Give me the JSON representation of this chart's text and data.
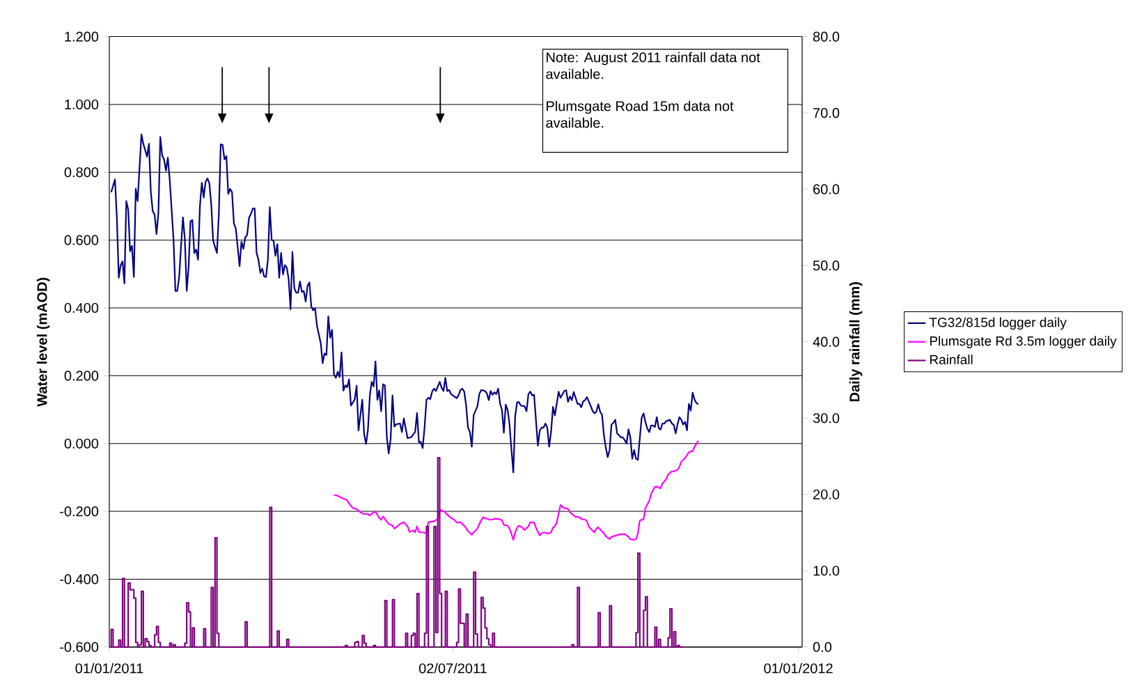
{
  "chart_data": {
    "type": "line",
    "ylabel": "Water level (mAOD)",
    "y2label": "Daily rainfall (mm)",
    "annotations": [
      "Note: August 2011 rainfall data not available.",
      "Plumsgate Road 15m data not available."
    ],
    "xlim": [
      "2011-01-01",
      "2012-01-03"
    ],
    "xticks": [
      {
        "value": "2011-01-01",
        "label": "01/01/2011"
      },
      {
        "value": "2011-07-02",
        "label": "02/07/2011"
      },
      {
        "value": "2012-01-01",
        "label": "01/01/2012"
      }
    ],
    "ylim": [
      -0.6,
      1.2
    ],
    "yticks": [
      {
        "value": -0.6,
        "label": "-0.600"
      },
      {
        "value": -0.4,
        "label": "-0.400"
      },
      {
        "value": -0.2,
        "label": "-0.200"
      },
      {
        "value": 0,
        "label": "0.000"
      },
      {
        "value": 0.2,
        "label": "0.200"
      },
      {
        "value": 0.4,
        "label": "0.400"
      },
      {
        "value": 0.6,
        "label": "0.600"
      },
      {
        "value": 0.8,
        "label": "0.800"
      },
      {
        "value": 1.0,
        "label": "1.000"
      },
      {
        "value": 1.2,
        "label": "1.200"
      }
    ],
    "y2lim": [
      0,
      80
    ],
    "y2ticks": [
      {
        "value": 0,
        "label": "0.0"
      },
      {
        "value": 10,
        "label": "10.0"
      },
      {
        "value": 20,
        "label": "20.0"
      },
      {
        "value": 30,
        "label": "30.0"
      },
      {
        "value": 40,
        "label": "40.0"
      },
      {
        "value": 50,
        "label": "50.0"
      },
      {
        "value": 60,
        "label": "60.0"
      },
      {
        "value": 70,
        "label": "70.0"
      },
      {
        "value": 80,
        "label": "80.0"
      }
    ],
    "grid": "y",
    "legend": "right",
    "series": [
      {
        "name": "TG32/815d logger daily",
        "color": "#000080",
        "x": [
          "2011-01-02",
          "2011-01-04",
          "2011-01-05",
          "2011-01-06",
          "2011-01-07",
          "2011-01-08",
          "2011-01-09",
          "2011-01-10",
          "2011-01-11",
          "2011-01-12",
          "2011-01-13",
          "2011-01-14",
          "2011-01-15",
          "2011-01-16",
          "2011-01-18",
          "2011-01-19",
          "2011-01-21",
          "2011-01-22",
          "2011-01-23",
          "2011-01-24",
          "2011-01-25",
          "2011-01-26",
          "2011-01-27",
          "2011-01-28",
          "2011-01-29",
          "2011-01-30",
          "2011-01-31",
          "2011-02-01",
          "2011-02-02",
          "2011-02-04",
          "2011-02-05",
          "2011-02-06",
          "2011-02-07",
          "2011-02-08",
          "2011-02-09",
          "2011-02-10",
          "2011-02-11",
          "2011-02-12",
          "2011-02-13",
          "2011-02-14",
          "2011-02-15",
          "2011-02-16",
          "2011-02-17",
          "2011-02-18",
          "2011-02-19",
          "2011-02-20",
          "2011-02-21",
          "2011-02-22",
          "2011-02-23",
          "2011-02-24",
          "2011-02-25",
          "2011-02-27",
          "2011-02-28",
          "2011-03-01",
          "2011-03-02",
          "2011-03-03",
          "2011-03-04",
          "2011-03-05",
          "2011-03-06",
          "2011-03-07",
          "2011-03-08",
          "2011-03-09",
          "2011-03-11",
          "2011-03-12",
          "2011-03-13",
          "2011-03-14",
          "2011-03-15",
          "2011-03-16",
          "2011-03-17",
          "2011-03-18",
          "2011-03-19",
          "2011-03-20",
          "2011-03-21",
          "2011-03-22",
          "2011-03-23",
          "2011-03-24",
          "2011-03-25",
          "2011-03-26",
          "2011-03-27",
          "2011-03-28",
          "2011-03-29",
          "2011-03-30",
          "2011-03-31",
          "2011-04-01",
          "2011-04-02",
          "2011-04-03",
          "2011-04-04",
          "2011-04-05",
          "2011-04-06",
          "2011-04-07",
          "2011-04-08",
          "2011-04-09",
          "2011-04-10",
          "2011-04-11",
          "2011-04-12",
          "2011-04-13",
          "2011-04-14",
          "2011-04-15",
          "2011-04-16",
          "2011-04-17",
          "2011-04-18",
          "2011-04-19",
          "2011-04-20",
          "2011-04-21",
          "2011-04-23",
          "2011-04-24",
          "2011-04-25",
          "2011-04-26",
          "2011-04-27",
          "2011-04-28",
          "2011-04-29",
          "2011-04-30",
          "2011-05-01",
          "2011-05-02",
          "2011-05-03",
          "2011-05-04",
          "2011-05-05",
          "2011-05-06",
          "2011-05-07",
          "2011-05-08",
          "2011-05-09",
          "2011-05-11",
          "2011-05-12",
          "2011-05-13",
          "2011-05-15",
          "2011-05-16",
          "2011-05-17",
          "2011-05-18",
          "2011-05-19",
          "2011-05-20",
          "2011-05-21",
          "2011-05-22",
          "2011-05-23",
          "2011-05-24",
          "2011-05-25",
          "2011-05-26",
          "2011-05-27",
          "2011-05-28",
          "2011-05-29",
          "2011-05-30",
          "2011-05-31",
          "2011-06-01",
          "2011-06-02",
          "2011-06-04",
          "2011-06-05",
          "2011-06-06",
          "2011-06-08",
          "2011-06-10",
          "2011-06-11",
          "2011-06-12",
          "2011-06-13",
          "2011-06-14",
          "2011-06-15",
          "2011-06-16",
          "2011-06-17",
          "2011-06-18",
          "2011-06-19",
          "2011-06-20",
          "2011-06-21",
          "2011-06-22",
          "2011-06-23",
          "2011-06-24",
          "2011-06-25",
          "2011-06-26",
          "2011-06-27",
          "2011-06-28",
          "2011-06-29",
          "2011-06-30",
          "2011-07-01",
          "2011-07-02",
          "2011-07-04",
          "2011-07-05",
          "2011-07-06",
          "2011-07-07",
          "2011-07-08",
          "2011-07-09",
          "2011-07-10",
          "2011-07-11",
          "2011-07-12",
          "2011-07-13",
          "2011-07-15",
          "2011-07-16",
          "2011-07-17",
          "2011-07-19",
          "2011-07-20",
          "2011-07-21",
          "2011-07-22",
          "2011-07-23",
          "2011-07-24",
          "2011-07-25",
          "2011-07-26",
          "2011-07-27",
          "2011-07-28",
          "2011-07-29",
          "2011-07-30",
          "2011-07-31",
          "2011-08-01",
          "2011-08-02",
          "2011-08-03",
          "2011-08-04",
          "2011-08-05",
          "2011-08-06",
          "2011-08-07",
          "2011-08-09",
          "2011-08-10",
          "2011-08-11",
          "2011-08-12",
          "2011-08-13",
          "2011-08-14",
          "2011-08-16",
          "2011-08-17",
          "2011-08-18",
          "2011-08-19",
          "2011-08-20",
          "2011-08-21",
          "2011-08-22",
          "2011-08-23",
          "2011-08-24",
          "2011-08-25",
          "2011-08-26",
          "2011-08-27",
          "2011-08-28",
          "2011-08-30",
          "2011-08-31",
          "2011-09-01",
          "2011-09-02",
          "2011-09-03",
          "2011-09-04",
          "2011-09-05",
          "2011-09-06",
          "2011-09-07",
          "2011-09-08",
          "2011-09-09",
          "2011-09-10",
          "2011-09-11",
          "2011-09-12",
          "2011-09-13",
          "2011-09-14",
          "2011-09-15",
          "2011-09-16",
          "2011-09-17",
          "2011-09-18",
          "2011-09-19",
          "2011-09-20",
          "2011-09-21",
          "2011-09-22",
          "2011-09-23",
          "2011-09-24",
          "2011-09-25",
          "2011-09-26",
          "2011-09-27",
          "2011-09-28",
          "2011-09-29",
          "2011-09-30",
          "2011-10-01",
          "2011-10-02",
          "2011-10-03",
          "2011-10-04",
          "2011-10-05",
          "2011-10-06",
          "2011-10-07",
          "2011-10-08",
          "2011-10-09",
          "2011-10-10",
          "2011-10-11",
          "2011-10-12",
          "2011-10-13",
          "2011-10-14",
          "2011-10-15",
          "2011-10-16",
          "2011-10-17",
          "2011-10-18",
          "2011-10-19",
          "2011-10-20",
          "2011-10-21",
          "2011-10-22",
          "2011-10-23",
          "2011-10-25",
          "2011-10-26",
          "2011-10-27",
          "2011-10-28",
          "2011-10-29",
          "2011-10-30",
          "2011-10-31",
          "2011-11-01",
          "2011-11-02",
          "2011-11-03",
          "2011-11-04",
          "2011-11-05",
          "2011-11-06",
          "2011-11-07",
          "2011-11-08",
          "2011-11-09"
        ],
        "values": [
          0.741,
          0.779,
          0.664,
          0.489,
          0.526,
          0.537,
          0.472,
          0.715,
          0.69,
          0.567,
          0.583,
          0.491,
          0.751,
          0.715,
          0.912,
          0.884,
          0.846,
          0.884,
          0.741,
          0.685,
          0.675,
          0.618,
          0.68,
          0.904,
          0.85,
          0.838,
          0.805,
          0.843,
          0.777,
          0.603,
          0.45,
          0.45,
          0.491,
          0.583,
          0.667,
          0.603,
          0.45,
          0.521,
          0.656,
          0.659,
          0.562,
          0.572,
          0.542,
          0.7,
          0.769,
          0.726,
          0.772,
          0.782,
          0.767,
          0.705,
          0.598,
          0.562,
          0.675,
          0.882,
          0.881,
          0.838,
          0.848,
          0.736,
          0.751,
          0.741,
          0.649,
          0.634,
          0.523,
          0.595,
          0.574,
          0.608,
          0.615,
          0.666,
          0.677,
          0.693,
          0.693,
          0.562,
          0.542,
          0.503,
          0.516,
          0.493,
          0.491,
          0.542,
          0.697,
          0.601,
          0.598,
          0.554,
          0.588,
          0.489,
          0.562,
          0.499,
          0.526,
          0.519,
          0.485,
          0.396,
          0.565,
          0.458,
          0.445,
          0.445,
          0.478,
          0.447,
          0.45,
          0.419,
          0.465,
          0.475,
          0.404,
          0.393,
          0.399,
          0.347,
          0.296,
          0.237,
          0.266,
          0.261,
          0.375,
          0.312,
          0.335,
          0.204,
          0.194,
          0.212,
          0.196,
          0.269,
          0.156,
          0.172,
          0.166,
          0.189,
          0.112,
          0.13,
          0.171,
          0.038,
          0.129,
          0.027,
          -0.001,
          0.041,
          0.142,
          0.182,
          0.168,
          0.242,
          0.129,
          0.157,
          0.095,
          0.175,
          0.171,
          0.019,
          -0.029,
          0.012,
          0.142,
          0.05,
          0.057,
          0.059,
          0.034,
          0.074,
          0.016,
          0.019,
          0.027,
          0.034,
          0.09,
          0.004,
          0.005,
          -0.013,
          0.048,
          0.129,
          0.135,
          0.131,
          0.153,
          0.162,
          0.155,
          0.168,
          0.182,
          0.165,
          0.155,
          0.194,
          0.155,
          0.158,
          0.146,
          0.142,
          0.134,
          0.142,
          0.158,
          0.162,
          0.153,
          0.113,
          0.047,
          0.034,
          -0.009,
          0.084,
          0.11,
          0.146,
          0.158,
          0.155,
          0.148,
          0.128,
          0.155,
          0.144,
          0.151,
          0.146,
          0.162,
          0.117,
          0.099,
          0.032,
          0.115,
          0.099,
          0.056,
          -0.017,
          -0.085,
          0.081,
          0.122,
          0.122,
          0.112,
          0.11,
          0.095,
          0.146,
          0.153,
          0.142,
          0.144,
          -0.006,
          0.038,
          0.047,
          0.047,
          0.059,
          0.047,
          -0.009,
          0.034,
          0.108,
          0.083,
          0.117,
          0.153,
          0.135,
          0.155,
          0.157,
          0.123,
          0.139,
          0.128,
          0.152,
          0.135,
          0.117,
          0.117,
          0.107,
          0.124,
          0.128,
          0.137,
          0.124,
          0.111,
          0.096,
          0.089,
          0.094,
          0.116,
          0.094,
          0.085,
          0.025,
          -0.012,
          -0.04,
          -0.019,
          0.056,
          0.061,
          0.07,
          0.03,
          0.025,
          0.018,
          0.018,
          0.01,
          0.0,
          0.042,
          0.018,
          -0.045,
          -0.019,
          -0.045,
          -0.048,
          0.015,
          0.076,
          0.089,
          0.063,
          0.044,
          0.034,
          0.053,
          0.053,
          0.049,
          0.078,
          0.046,
          0.041,
          0.059,
          0.059,
          0.066,
          0.07,
          0.059,
          0.055,
          0.03,
          0.057,
          0.078,
          0.07,
          0.056,
          0.064,
          0.039,
          0.117,
          0.097,
          0.15,
          0.13,
          0.119,
          0.116
        ]
      },
      {
        "name": "Plumsgate Rd 3.5m logger daily",
        "color": "#ff00ff",
        "x": [
          "2011-04-30",
          "2011-05-02",
          "2011-05-04",
          "2011-05-07",
          "2011-05-08",
          "2011-05-10",
          "2011-05-12",
          "2011-05-14",
          "2011-05-16",
          "2011-05-18",
          "2011-05-19",
          "2011-05-21",
          "2011-05-22",
          "2011-05-24",
          "2011-05-25",
          "2011-05-26",
          "2011-05-28",
          "2011-05-29",
          "2011-05-31",
          "2011-06-01",
          "2011-06-03",
          "2011-06-04",
          "2011-06-06",
          "2011-06-08",
          "2011-06-09",
          "2011-06-11",
          "2011-06-12",
          "2011-06-13",
          "2011-06-14",
          "2011-06-16",
          "2011-06-18",
          "2011-06-19",
          "2011-06-21",
          "2011-06-22",
          "2011-06-24",
          "2011-06-25",
          "2011-06-26",
          "2011-06-28",
          "2011-06-29",
          "2011-07-01",
          "2011-07-03",
          "2011-07-04",
          "2011-07-06",
          "2011-07-07",
          "2011-07-09",
          "2011-07-10",
          "2011-07-12",
          "2011-07-13",
          "2011-07-15",
          "2011-07-16",
          "2011-07-18",
          "2011-07-19",
          "2011-07-22",
          "2011-07-24",
          "2011-07-26",
          "2011-07-28",
          "2011-07-29",
          "2011-07-31",
          "2011-08-01",
          "2011-08-02",
          "2011-08-03",
          "2011-08-04",
          "2011-08-05",
          "2011-08-06",
          "2011-08-08",
          "2011-08-09",
          "2011-08-11",
          "2011-08-12",
          "2011-08-14",
          "2011-08-15",
          "2011-08-17",
          "2011-08-18",
          "2011-08-20",
          "2011-08-21",
          "2011-08-23",
          "2011-08-24",
          "2011-08-25",
          "2011-08-26",
          "2011-08-28",
          "2011-08-30",
          "2011-08-31",
          "2011-09-01",
          "2011-09-02",
          "2011-09-04",
          "2011-09-05",
          "2011-09-07",
          "2011-09-08",
          "2011-09-10",
          "2011-09-11",
          "2011-09-12",
          "2011-09-14",
          "2011-09-15",
          "2011-09-16",
          "2011-09-17",
          "2011-09-18",
          "2011-09-20",
          "2011-09-21",
          "2011-09-23",
          "2011-09-24",
          "2011-09-26",
          "2011-09-28",
          "2011-09-29",
          "2011-10-01",
          "2011-10-03",
          "2011-10-04",
          "2011-10-06",
          "2011-10-07",
          "2011-10-08",
          "2011-10-09",
          "2011-10-11",
          "2011-10-12",
          "2011-10-14",
          "2011-10-15",
          "2011-10-17",
          "2011-10-18",
          "2011-10-20",
          "2011-10-21",
          "2011-10-23",
          "2011-10-24",
          "2011-10-26",
          "2011-10-27",
          "2011-10-29",
          "2011-10-30",
          "2011-10-31",
          "2011-11-02",
          "2011-11-04",
          "2011-11-05",
          "2011-11-06",
          "2011-11-07",
          "2011-11-09"
        ],
        "values": [
          -0.152,
          -0.154,
          -0.16,
          -0.167,
          -0.177,
          -0.19,
          -0.193,
          -0.203,
          -0.208,
          -0.208,
          -0.212,
          -0.203,
          -0.201,
          -0.219,
          -0.225,
          -0.215,
          -0.23,
          -0.237,
          -0.242,
          -0.251,
          -0.242,
          -0.237,
          -0.232,
          -0.244,
          -0.261,
          -0.256,
          -0.262,
          -0.244,
          -0.261,
          -0.262,
          -0.264,
          -0.232,
          -0.23,
          -0.23,
          -0.222,
          -0.196,
          -0.197,
          -0.203,
          -0.21,
          -0.219,
          -0.226,
          -0.233,
          -0.232,
          -0.237,
          -0.249,
          -0.258,
          -0.269,
          -0.262,
          -0.251,
          -0.237,
          -0.217,
          -0.22,
          -0.225,
          -0.222,
          -0.222,
          -0.226,
          -0.24,
          -0.242,
          -0.251,
          -0.266,
          -0.284,
          -0.262,
          -0.248,
          -0.242,
          -0.249,
          -0.255,
          -0.244,
          -0.232,
          -0.233,
          -0.248,
          -0.271,
          -0.264,
          -0.262,
          -0.266,
          -0.262,
          -0.248,
          -0.244,
          -0.233,
          -0.181,
          -0.191,
          -0.191,
          -0.193,
          -0.202,
          -0.212,
          -0.216,
          -0.217,
          -0.223,
          -0.224,
          -0.229,
          -0.245,
          -0.257,
          -0.262,
          -0.251,
          -0.247,
          -0.253,
          -0.265,
          -0.273,
          -0.282,
          -0.275,
          -0.272,
          -0.268,
          -0.268,
          -0.267,
          -0.275,
          -0.282,
          -0.284,
          -0.282,
          -0.265,
          -0.227,
          -0.223,
          -0.19,
          -0.169,
          -0.148,
          -0.128,
          -0.127,
          -0.132,
          -0.118,
          -0.105,
          -0.091,
          -0.082,
          -0.082,
          -0.077,
          -0.068,
          -0.053,
          -0.043,
          -0.026,
          -0.023,
          -0.023,
          -0.009,
          0.008
        ]
      },
      {
        "name": "Rainfall",
        "color": "#800080",
        "type": "step",
        "axis": "y2",
        "x": [
          "2011-01-01",
          "2011-01-02",
          "2011-01-03",
          "2011-01-06",
          "2011-01-07",
          "2011-01-08",
          "2011-01-09",
          "2011-01-11",
          "2011-01-12",
          "2011-01-13",
          "2011-01-14",
          "2011-01-15",
          "2011-01-16",
          "2011-01-17",
          "2011-01-18",
          "2011-01-19",
          "2011-01-20",
          "2011-01-21",
          "2011-01-22",
          "2011-01-23",
          "2011-01-25",
          "2011-01-26",
          "2011-01-27",
          "2011-01-28",
          "2011-02-02",
          "2011-02-03",
          "2011-02-04",
          "2011-02-05",
          "2011-02-10",
          "2011-02-11",
          "2011-02-12",
          "2011-02-13",
          "2011-02-14",
          "2011-02-15",
          "2011-02-20",
          "2011-02-21",
          "2011-02-24",
          "2011-02-25",
          "2011-02-26",
          "2011-02-27",
          "2011-02-28",
          "2011-03-14",
          "2011-03-15",
          "2011-03-27",
          "2011-03-28",
          "2011-03-31",
          "2011-04-01",
          "2011-04-05",
          "2011-04-06",
          "2011-05-06",
          "2011-05-07",
          "2011-05-11",
          "2011-05-12",
          "2011-05-13",
          "2011-05-15",
          "2011-05-16",
          "2011-05-17",
          "2011-05-21",
          "2011-05-22",
          "2011-05-27",
          "2011-05-28",
          "2011-05-31",
          "2011-06-01",
          "2011-06-07",
          "2011-06-08",
          "2011-06-10",
          "2011-06-11",
          "2011-06-12",
          "2011-06-13",
          "2011-06-14",
          "2011-06-17",
          "2011-06-18",
          "2011-06-19",
          "2011-06-22",
          "2011-06-23",
          "2011-06-24",
          "2011-06-25",
          "2011-06-26",
          "2011-06-28",
          "2011-06-29",
          "2011-07-04",
          "2011-07-05",
          "2011-07-06",
          "2011-07-07",
          "2011-07-08",
          "2011-07-09",
          "2011-07-10",
          "2011-07-13",
          "2011-07-14",
          "2011-07-15",
          "2011-07-17",
          "2011-07-18",
          "2011-07-19",
          "2011-07-20",
          "2011-07-21",
          "2011-07-22",
          "2011-07-23",
          "2011-07-24",
          "2011-09-03",
          "2011-09-04",
          "2011-09-06",
          "2011-09-07",
          "2011-09-17",
          "2011-09-18",
          "2011-09-23",
          "2011-09-24",
          "2011-10-07",
          "2011-10-08",
          "2011-10-09",
          "2011-10-11",
          "2011-10-12",
          "2011-10-13",
          "2011-10-17",
          "2011-10-18",
          "2011-10-19",
          "2011-10-20",
          "2011-10-24",
          "2011-10-25",
          "2011-10-26",
          "2011-10-27",
          "2011-10-28",
          "2011-10-29",
          "2011-10-30",
          "2011-11-01"
        ],
        "values": [
          0,
          2.3,
          0,
          0.9,
          0,
          9.0,
          0,
          8.4,
          7.5,
          7.5,
          6.4,
          0.6,
          0,
          0.3,
          7.3,
          0,
          1.1,
          0.7,
          0.2,
          0,
          1.6,
          2.7,
          0.6,
          0,
          0.5,
          0,
          0.3,
          0,
          0.5,
          5.8,
          4.6,
          0,
          2.5,
          0,
          2.4,
          0,
          7.8,
          0,
          14.3,
          1.8,
          0,
          3.3,
          0,
          18.3,
          0,
          2.1,
          0,
          1.0,
          0,
          0.2,
          0,
          0.6,
          0.7,
          0,
          1.5,
          0.5,
          0,
          0.2,
          0,
          6.1,
          0,
          6.2,
          0,
          1.8,
          0,
          1.5,
          1.8,
          0,
          7.0,
          0,
          1.8,
          15.8,
          0,
          15.8,
          1.9,
          24.8,
          7.0,
          0,
          7.3,
          0,
          0.6,
          7.6,
          3.1,
          3.1,
          0,
          4.3,
          0,
          9.8,
          1.7,
          0,
          6.5,
          5.1,
          2.5,
          1.1,
          0.3,
          0,
          1.8,
          0,
          0.3,
          0,
          7.8,
          0,
          4.5,
          0,
          5.4,
          0,
          1.9,
          12.3,
          0,
          4.8,
          6.6,
          0,
          2.6,
          0,
          1.0,
          0,
          1.2,
          5.0,
          0,
          2.0,
          0,
          0.2,
          0,
          0
        ]
      }
    ]
  }
}
